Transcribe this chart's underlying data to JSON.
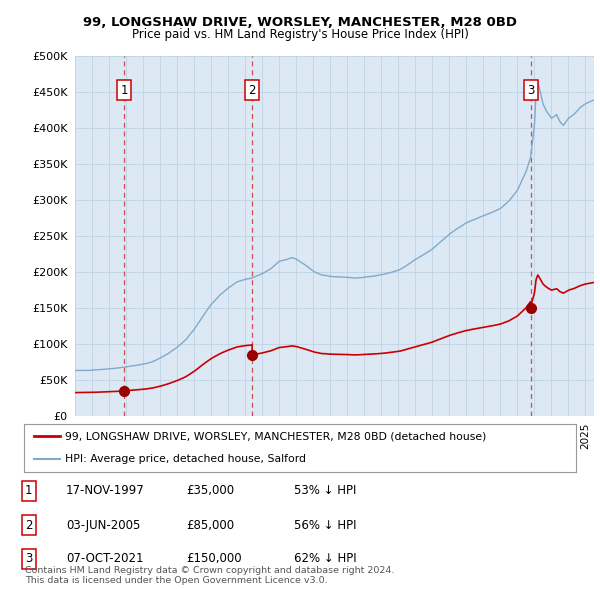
{
  "title1": "99, LONGSHAW DRIVE, WORSLEY, MANCHESTER, M28 0BD",
  "title2": "Price paid vs. HM Land Registry's House Price Index (HPI)",
  "background_color": "#dce9f5",
  "ylim": [
    0,
    500000
  ],
  "yticks": [
    0,
    50000,
    100000,
    150000,
    200000,
    250000,
    300000,
    350000,
    400000,
    450000,
    500000
  ],
  "ytick_labels": [
    "£0",
    "£50K",
    "£100K",
    "£150K",
    "£200K",
    "£250K",
    "£300K",
    "£350K",
    "£400K",
    "£450K",
    "£500K"
  ],
  "sale_dates_num": [
    1997.88,
    2005.42,
    2021.77
  ],
  "sale_prices": [
    35000,
    85000,
    150000
  ],
  "sale_labels": [
    "1",
    "2",
    "3"
  ],
  "vline_color": "#cc0000",
  "dot_color": "#990000",
  "hpi_color": "#7faacc",
  "price_color": "#cc0000",
  "legend_label_price": "99, LONGSHAW DRIVE, WORSLEY, MANCHESTER, M28 0BD (detached house)",
  "legend_label_hpi": "HPI: Average price, detached house, Salford",
  "table_rows": [
    [
      "1",
      "17-NOV-1997",
      "£35,000",
      "53% ↓ HPI"
    ],
    [
      "2",
      "03-JUN-2005",
      "£85,000",
      "56% ↓ HPI"
    ],
    [
      "3",
      "07-OCT-2021",
      "£150,000",
      "62% ↓ HPI"
    ]
  ],
  "footnote": "Contains HM Land Registry data © Crown copyright and database right 2024.\nThis data is licensed under the Open Government Licence v3.0.",
  "xmin": 1995.0,
  "xmax": 2025.5
}
